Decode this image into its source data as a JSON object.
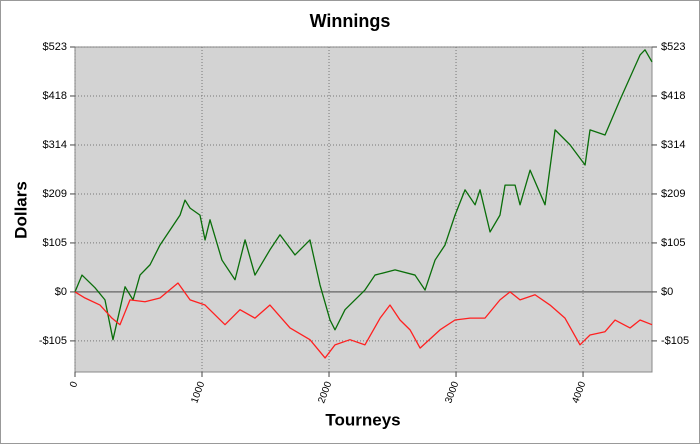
{
  "chart_data": {
    "type": "line",
    "title": "Winnings",
    "x_label": "Tourneys",
    "y_label": "Dollars",
    "xlim": [
      0,
      4543
    ],
    "xticks": [
      0,
      1000,
      2000,
      3000,
      4000
    ],
    "ylim": [
      -171,
      523
    ],
    "yticks": [
      {
        "value": 523,
        "label": "$523"
      },
      {
        "value": 418.4,
        "label": "$418"
      },
      {
        "value": 313.8,
        "label": "$314"
      },
      {
        "value": 209.2,
        "label": "$209"
      },
      {
        "value": 104.6,
        "label": "$105"
      },
      {
        "value": 0,
        "label": "$0"
      },
      {
        "value": -104.6,
        "label": "-$105"
      }
    ],
    "grid": true,
    "background": "#d3d3d3",
    "series": [
      {
        "color": "#0a6e0a",
        "x": [
          0,
          55,
          157,
          236,
          299,
          394,
          457,
          512,
          591,
          669,
          748,
          827,
          866,
          906,
          984,
          1024,
          1063,
          1157,
          1260,
          1339,
          1417,
          1535,
          1614,
          1732,
          1850,
          1929,
          2008,
          2047,
          2126,
          2283,
          2362,
          2520,
          2677,
          2756,
          2835,
          2913,
          2992,
          3071,
          3150,
          3189,
          3268,
          3346,
          3386,
          3465,
          3504,
          3583,
          3701,
          3780,
          3898,
          4016,
          4055,
          4173,
          4291,
          4449,
          4488,
          4543
        ],
        "values": [
          0,
          36,
          9,
          -17,
          -102,
          11,
          -17,
          36,
          58,
          100,
          132,
          164,
          196,
          179,
          164,
          111,
          154,
          68,
          26,
          111,
          36,
          90,
          122,
          79,
          111,
          15,
          -60,
          -81,
          -38,
          4,
          36,
          47,
          36,
          4,
          68,
          100,
          164,
          218,
          186,
          218,
          128,
          164,
          228,
          228,
          186,
          260,
          186,
          346,
          314,
          271,
          346,
          335,
          410,
          506,
          517,
          491
        ]
      },
      {
        "color": "#ff2020",
        "x": [
          0,
          79,
          197,
          291,
          354,
          433,
          551,
          669,
          811,
          906,
          1024,
          1181,
          1299,
          1417,
          1535,
          1693,
          1850,
          1969,
          2047,
          2165,
          2283,
          2402,
          2480,
          2559,
          2638,
          2717,
          2874,
          2992,
          3110,
          3228,
          3346,
          3425,
          3504,
          3622,
          3740,
          3858,
          3976,
          4055,
          4173,
          4252,
          4370,
          4449,
          4543
        ],
        "values": [
          0,
          -13,
          -28,
          -56,
          -70,
          -17,
          -21,
          -13,
          19,
          -17,
          -28,
          -70,
          -38,
          -56,
          -28,
          -77,
          -102,
          -141,
          -113,
          -102,
          -113,
          -56,
          -28,
          -60,
          -81,
          -120,
          -81,
          -60,
          -56,
          -56,
          -17,
          0,
          -17,
          -6,
          -28,
          -56,
          -113,
          -92,
          -85,
          -60,
          -77,
          -60,
          -70
        ]
      }
    ]
  }
}
